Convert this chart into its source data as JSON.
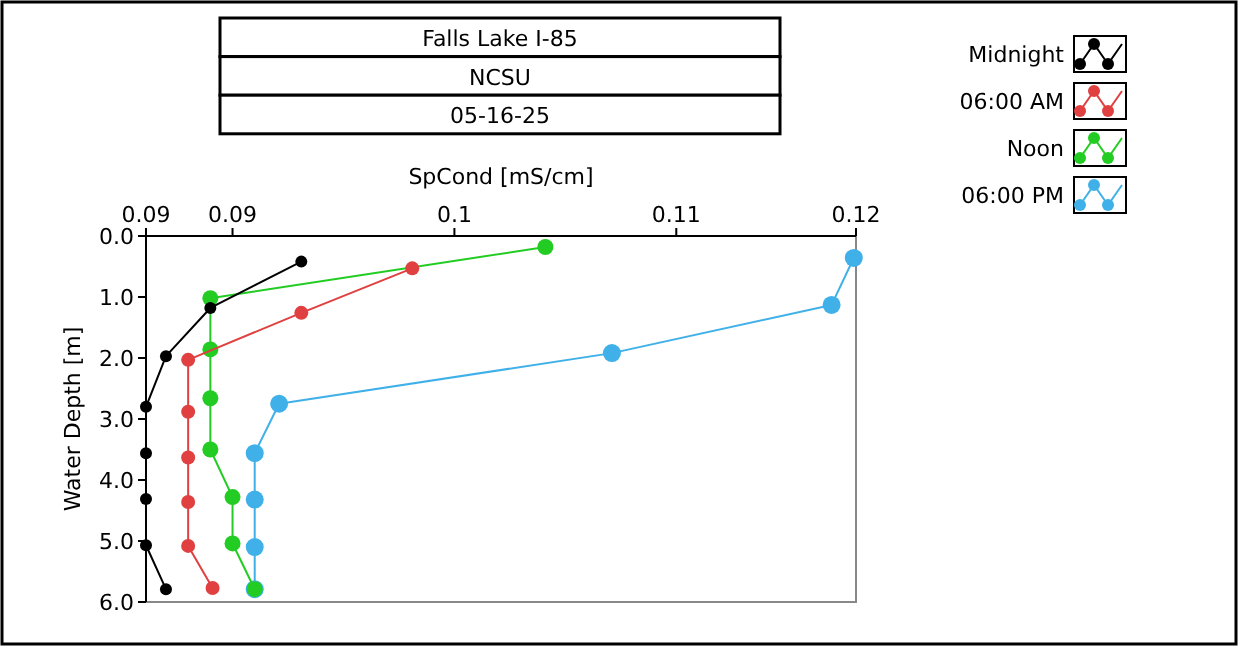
{
  "chart_data": {
    "type": "line",
    "title": "Falls Lake I-85",
    "subtitle": "NCSU",
    "annotations": [
      "05-16-25"
    ],
    "xlabel": "SpCond [mS/cm]",
    "ylabel": "Water Depth [m]",
    "xlim": [
      0.0861,
      0.1181
    ],
    "xticks": [
      {
        "value": 0.0861,
        "label": "0.09"
      },
      {
        "value": 0.09,
        "label": "0.09"
      },
      {
        "value": 0.1,
        "label": "0.1"
      },
      {
        "value": 0.11,
        "label": "0.11"
      },
      {
        "value": 0.1181,
        "label": "0.12"
      }
    ],
    "ylim": [
      6,
      0
    ],
    "yticks": [
      {
        "value": 0,
        "label": "0.0"
      },
      {
        "value": 1,
        "label": "1.0"
      },
      {
        "value": 2,
        "label": "2.0"
      },
      {
        "value": 3,
        "label": "3.0"
      },
      {
        "value": 4,
        "label": "4.0"
      },
      {
        "value": 5,
        "label": "5.0"
      },
      {
        "value": 6,
        "label": "6.0"
      }
    ],
    "grid": false,
    "legend": "top right",
    "marker": "circle",
    "line_style": "solid",
    "series": [
      {
        "name": "Midnight",
        "color": "#000000",
        "x": [
          0.0931,
          0.089,
          0.087,
          0.0861,
          0.0861,
          0.0861,
          0.0861,
          0.087
        ],
        "values": [
          0.42,
          1.18,
          1.97,
          2.8,
          3.56,
          4.31,
          5.07,
          5.79
        ]
      },
      {
        "name": "06:00 AM",
        "color": "#e04040",
        "x": [
          0.0981,
          0.0931,
          0.088,
          0.088,
          0.088,
          0.088,
          0.088,
          0.0891
        ],
        "values": [
          0.53,
          1.26,
          2.03,
          2.88,
          3.63,
          4.36,
          5.08,
          5.77
        ]
      },
      {
        "name": "Noon",
        "color": "#22cc22",
        "x": [
          0.1041,
          0.089,
          0.089,
          0.089,
          0.089,
          0.09,
          0.09,
          0.091
        ],
        "values": [
          0.18,
          1.02,
          1.86,
          2.66,
          3.5,
          4.28,
          5.04,
          5.79
        ]
      },
      {
        "name": "06:00 PM",
        "color": "#40b0e8",
        "x": [
          0.118,
          0.117,
          0.1071,
          0.0921,
          0.091,
          0.091,
          0.091,
          0.091
        ],
        "values": [
          0.36,
          1.13,
          1.92,
          2.75,
          3.56,
          4.32,
          5.1,
          5.79
        ]
      }
    ]
  }
}
